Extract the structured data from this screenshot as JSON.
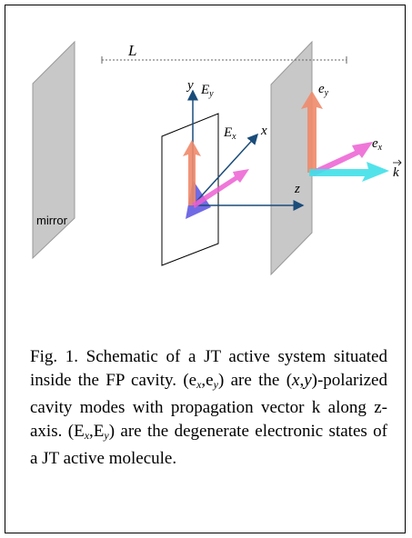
{
  "figure": {
    "distance_label": "L",
    "mirror_label": "mirror",
    "axes": {
      "y": "y",
      "x": "x",
      "z": "z"
    },
    "molecule_states": [
      {
        "base": "E",
        "sub": "y"
      },
      {
        "base": "E",
        "sub": "x"
      }
    ],
    "cavity_modes": [
      {
        "base": "e",
        "sub": "y"
      },
      {
        "base": "e",
        "sub": "x"
      }
    ],
    "propagation_vector": "k"
  },
  "caption": [
    {
      "text": "Fig. 1. Schematic of a JT active system situated inside the FP cavity. (e"
    },
    {
      "text": "x",
      "sub": true
    },
    {
      "text": ",e"
    },
    {
      "text": "y",
      "sub": true
    },
    {
      "text": ") are the ("
    },
    {
      "text": "x",
      "italic": true
    },
    {
      "text": ","
    },
    {
      "text": "y",
      "italic": true
    },
    {
      "text": ")-polarized cavity modes with propagation vector k along z-axis. (E"
    },
    {
      "text": "x",
      "sub": true
    },
    {
      "text": ",E"
    },
    {
      "text": "y",
      "sub": true
    },
    {
      "text": ") are the degenerate electronic states of a JT active molecule."
    }
  ]
}
